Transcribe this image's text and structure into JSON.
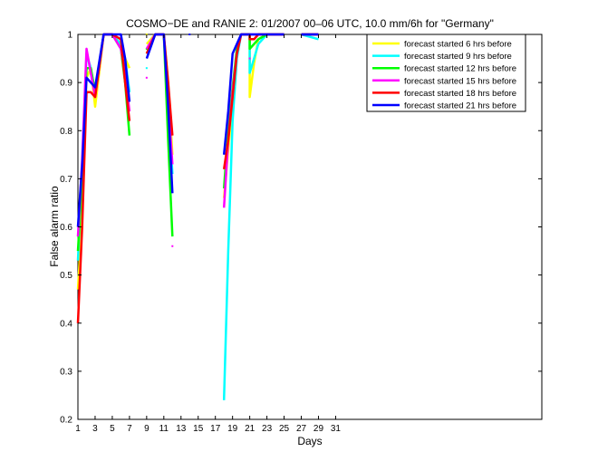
{
  "chart_data": {
    "type": "line",
    "title": "COSMO−DE and RANIE 2: 01/2007 00–06 UTC, 10.0 mm/6h for \"Germany\"",
    "xlabel": "Days",
    "ylabel": "False alarm ratio",
    "xlim": [
      1,
      55
    ],
    "ylim": [
      0.2,
      1.0
    ],
    "xticks": [
      1,
      3,
      5,
      7,
      9,
      11,
      13,
      15,
      17,
      19,
      21,
      23,
      25,
      27,
      29,
      31
    ],
    "yticks": [
      0.2,
      0.3,
      0.4,
      0.5,
      0.6,
      0.7,
      0.8,
      0.9,
      1.0
    ],
    "ytick_labels": [
      "0.2",
      "0.3",
      "0.4",
      "0.5",
      "0.6",
      "0.7",
      "0.8",
      "0.9",
      "1"
    ],
    "grid": false,
    "legend_position": "top-right",
    "series": [
      {
        "name": "forecast started 6 hrs before",
        "color": "#ffff00",
        "segments": [
          [
            [
              1,
              0.47
            ],
            [
              1.5,
              0.62
            ],
            [
              2,
              0.91
            ],
            [
              2.5,
              0.93
            ],
            [
              3,
              0.85
            ],
            [
              4,
              1.0
            ],
            [
              5,
              1.0
            ],
            [
              6,
              0.98
            ],
            [
              6.5,
              0.95
            ],
            [
              7,
              0.93
            ]
          ],
          [
            [
              9,
              0.98
            ],
            [
              10,
              1.0
            ],
            [
              11,
              1.0
            ],
            [
              11.5,
              0.9
            ],
            [
              12,
              0.75
            ]
          ],
          [
            [
              18,
              0.66
            ],
            [
              18.5,
              0.76
            ],
            [
              19,
              0.86
            ],
            [
              19.5,
              0.96
            ],
            [
              20,
              1.0
            ],
            [
              21,
              1.0
            ],
            [
              21,
              0.87
            ],
            [
              21.5,
              0.94
            ],
            [
              22,
              0.99
            ],
            [
              23,
              1.0
            ],
            [
              25,
              1.0
            ]
          ],
          [
            [
              27,
              1.0
            ],
            [
              29,
              1.0
            ]
          ]
        ],
        "points": [
          [
            9,
            1.0
          ],
          [
            11,
            0.99
          ],
          [
            21,
            0.99
          ],
          [
            22,
            0.98
          ]
        ]
      },
      {
        "name": "forecast started 9 hrs before",
        "color": "#00ffff",
        "segments": [
          [
            [
              1,
              0.53
            ],
            [
              1.5,
              0.72
            ],
            [
              2,
              0.96
            ],
            [
              2.5,
              0.93
            ],
            [
              3,
              0.88
            ],
            [
              4,
              1.0
            ],
            [
              5,
              1.0
            ],
            [
              6,
              0.98
            ],
            [
              6.5,
              0.95
            ],
            [
              7,
              0.88
            ]
          ],
          [
            [
              9,
              0.97
            ],
            [
              10,
              1.0
            ],
            [
              11,
              1.0
            ],
            [
              11.5,
              0.86
            ],
            [
              12,
              0.71
            ]
          ],
          [
            [
              18,
              0.24
            ],
            [
              18.5,
              0.55
            ],
            [
              19,
              0.82
            ],
            [
              19.5,
              0.95
            ],
            [
              20,
              1.0
            ],
            [
              21,
              1.0
            ],
            [
              21,
              0.92
            ],
            [
              21.5,
              0.95
            ],
            [
              22,
              0.98
            ],
            [
              23,
              1.0
            ],
            [
              25,
              1.0
            ]
          ],
          [
            [
              27,
              1.0
            ],
            [
              29,
              0.99
            ]
          ]
        ],
        "points": [
          [
            9,
            0.93
          ]
        ]
      },
      {
        "name": "forecast started 12 hrs before",
        "color": "#00ff00",
        "segments": [
          [
            [
              1,
              0.55
            ],
            [
              1.5,
              0.7
            ],
            [
              2,
              0.93
            ],
            [
              2.5,
              0.93
            ],
            [
              3,
              0.88
            ],
            [
              4,
              1.0
            ],
            [
              5,
              1.0
            ],
            [
              6,
              0.97
            ],
            [
              6.5,
              0.9
            ],
            [
              7,
              0.79
            ]
          ],
          [
            [
              9,
              0.96
            ],
            [
              10,
              1.0
            ],
            [
              11,
              1.0
            ],
            [
              11.5,
              0.78
            ],
            [
              12,
              0.58
            ]
          ],
          [
            [
              18,
              0.68
            ],
            [
              18.5,
              0.8
            ],
            [
              19,
              0.89
            ],
            [
              19.5,
              0.97
            ],
            [
              20,
              1.0
            ],
            [
              21,
              1.0
            ],
            [
              21,
              0.97
            ],
            [
              21.5,
              0.98
            ],
            [
              22,
              0.99
            ],
            [
              23,
              1.0
            ],
            [
              25,
              1.0
            ]
          ],
          [
            [
              27,
              1.0
            ],
            [
              29,
              1.0
            ]
          ]
        ],
        "points": [
          [
            9,
            0.97
          ]
        ]
      },
      {
        "name": "forecast started 15 hrs before",
        "color": "#ff00ff",
        "segments": [
          [
            [
              1,
              0.58
            ],
            [
              1.5,
              0.74
            ],
            [
              2,
              0.97
            ],
            [
              2.5,
              0.92
            ],
            [
              3,
              0.87
            ],
            [
              4,
              1.0
            ],
            [
              5,
              1.0
            ],
            [
              6,
              0.97
            ],
            [
              6.5,
              0.92
            ],
            [
              7,
              0.84
            ]
          ],
          [
            [
              9,
              0.97
            ],
            [
              10,
              1.0
            ],
            [
              11,
              1.0
            ],
            [
              11.5,
              0.86
            ],
            [
              12,
              0.73
            ]
          ],
          [
            [
              18,
              0.64
            ],
            [
              18.5,
              0.78
            ],
            [
              19,
              0.88
            ],
            [
              19.5,
              0.96
            ],
            [
              20,
              1.0
            ],
            [
              21,
              1.0
            ],
            [
              25,
              1.0
            ]
          ],
          [
            [
              27,
              1.0
            ],
            [
              29,
              1.0
            ]
          ]
        ],
        "points": [
          [
            9,
            0.91
          ],
          [
            12,
            0.56
          ],
          [
            21,
            0.95
          ]
        ]
      },
      {
        "name": "forecast started 18 hrs before",
        "color": "#ff0000",
        "segments": [
          [
            [
              1,
              0.4
            ],
            [
              1.5,
              0.6
            ],
            [
              2,
              0.88
            ],
            [
              2.5,
              0.88
            ],
            [
              3,
              0.87
            ],
            [
              4,
              1.0
            ],
            [
              5,
              1.0
            ],
            [
              6,
              0.99
            ],
            [
              6.5,
              0.9
            ],
            [
              7,
              0.82
            ]
          ],
          [
            [
              9,
              0.96
            ],
            [
              10,
              1.0
            ],
            [
              11,
              1.0
            ],
            [
              11.5,
              0.9
            ],
            [
              12,
              0.79
            ]
          ],
          [
            [
              18,
              0.72
            ],
            [
              18.5,
              0.78
            ],
            [
              19,
              0.87
            ],
            [
              19.5,
              0.96
            ],
            [
              20,
              1.0
            ],
            [
              21,
              1.0
            ],
            [
              21,
              0.99
            ],
            [
              21.5,
              0.99
            ],
            [
              22,
              1.0
            ],
            [
              25,
              1.0
            ]
          ],
          [
            [
              27,
              1.0
            ],
            [
              29,
              1.0
            ]
          ]
        ],
        "points": []
      },
      {
        "name": "forecast started 21 hrs before",
        "color": "#0000ff",
        "segments": [
          [
            [
              1,
              0.6
            ],
            [
              1.5,
              0.73
            ],
            [
              2,
              0.91
            ],
            [
              2.5,
              0.9
            ],
            [
              3,
              0.89
            ],
            [
              4,
              1.0
            ],
            [
              5,
              1.0
            ],
            [
              6,
              1.0
            ],
            [
              6.5,
              0.95
            ],
            [
              7,
              0.86
            ]
          ],
          [
            [
              9,
              0.95
            ],
            [
              10,
              1.0
            ],
            [
              11,
              1.0
            ],
            [
              11.5,
              0.85
            ],
            [
              12,
              0.67
            ]
          ],
          [
            [
              18,
              0.75
            ],
            [
              18.5,
              0.84
            ],
            [
              19,
              0.96
            ],
            [
              19.5,
              0.98
            ],
            [
              20,
              1.0
            ],
            [
              21,
              1.0
            ],
            [
              25,
              1.0
            ]
          ],
          [
            [
              27,
              1.0
            ],
            [
              29,
              1.0
            ]
          ]
        ],
        "points": [
          [
            14,
            1.0
          ]
        ]
      }
    ]
  }
}
